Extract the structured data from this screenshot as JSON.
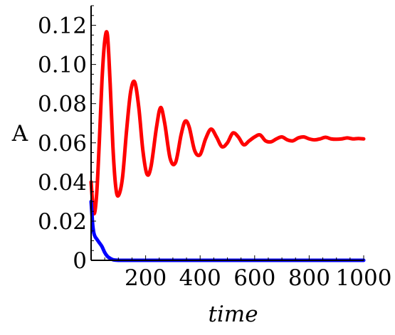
{
  "chart_data": {
    "type": "line",
    "xlabel": "time",
    "ylabel": "A",
    "xlim": [
      0,
      1000
    ],
    "ylim": [
      0,
      0.13
    ],
    "xticks": [
      {
        "value": 200,
        "label": "200"
      },
      {
        "value": 400,
        "label": "400"
      },
      {
        "value": 600,
        "label": "600"
      },
      {
        "value": 800,
        "label": "800"
      },
      {
        "value": 1000,
        "label": "1000"
      }
    ],
    "yticks": [
      {
        "value": 0,
        "label": "0"
      },
      {
        "value": 0.02,
        "label": "0.02"
      },
      {
        "value": 0.04,
        "label": "0.04"
      },
      {
        "value": 0.06,
        "label": "0.06"
      },
      {
        "value": 0.08,
        "label": "0.08"
      },
      {
        "value": 0.1,
        "label": "0.10"
      },
      {
        "value": 0.12,
        "label": "0.12"
      }
    ],
    "grid": false,
    "legend": "none",
    "series": [
      {
        "color": "#ff0000",
        "x": [
          0,
          10,
          20,
          30,
          40,
          50,
          60,
          70,
          80,
          90,
          100,
          115,
          130,
          145,
          160,
          175,
          190,
          205,
          220,
          240,
          255,
          270,
          290,
          310,
          330,
          345,
          360,
          380,
          400,
          420,
          440,
          460,
          480,
          500,
          520,
          540,
          560,
          580,
          600,
          620,
          640,
          660,
          680,
          700,
          720,
          740,
          760,
          780,
          800,
          820,
          840,
          860,
          880,
          900,
          920,
          940,
          960,
          980,
          1000
        ],
        "y": [
          0.04,
          0.024,
          0.033,
          0.06,
          0.092,
          0.112,
          0.115,
          0.09,
          0.058,
          0.038,
          0.033,
          0.042,
          0.066,
          0.086,
          0.091,
          0.078,
          0.056,
          0.044,
          0.048,
          0.068,
          0.078,
          0.07,
          0.052,
          0.05,
          0.064,
          0.071,
          0.068,
          0.056,
          0.054,
          0.062,
          0.067,
          0.063,
          0.058,
          0.06,
          0.065,
          0.063,
          0.059,
          0.061,
          0.063,
          0.064,
          0.061,
          0.0605,
          0.062,
          0.063,
          0.0615,
          0.061,
          0.0625,
          0.063,
          0.062,
          0.0615,
          0.062,
          0.0628,
          0.062,
          0.0618,
          0.062,
          0.0625,
          0.062,
          0.0622,
          0.062
        ]
      },
      {
        "color": "#0000ff",
        "x": [
          0,
          3,
          6,
          10,
          15,
          20,
          30,
          40,
          50,
          60,
          70,
          80,
          90,
          100,
          120,
          200,
          400,
          600,
          800,
          1000
        ],
        "y": [
          0.03,
          0.024,
          0.018,
          0.014,
          0.012,
          0.011,
          0.009,
          0.007,
          0.004,
          0.002,
          0.001,
          0.0003,
          0.0001,
          0.0,
          0.0,
          0.0,
          0.0,
          0.0,
          0.0,
          0.0
        ]
      }
    ]
  }
}
